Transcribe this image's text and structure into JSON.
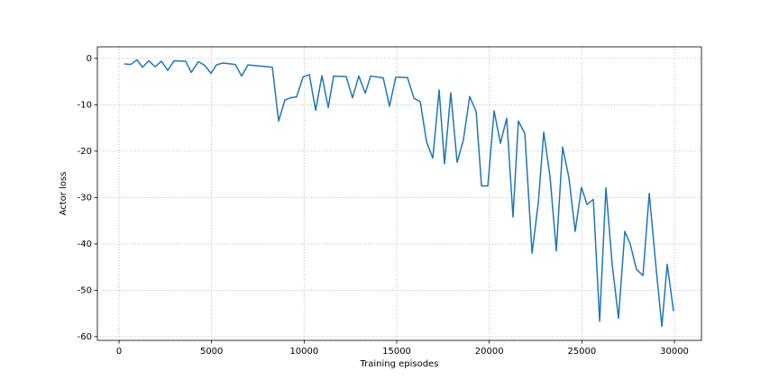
{
  "chart_data": {
    "type": "line",
    "x_label": "Training episodes",
    "y_label": "Actor loss",
    "xlim": [
      -1170,
      31460
    ],
    "ylim": [
      -60.8,
      2.5
    ],
    "xticks": [
      0,
      5000,
      10000,
      15000,
      20000,
      25000,
      30000
    ],
    "yticks": [
      -60,
      -50,
      -40,
      -30,
      -20,
      -10,
      0
    ],
    "grid": true,
    "x": [
      290,
      630,
      970,
      1270,
      1610,
      1950,
      2290,
      2630,
      2970,
      3600,
      3900,
      4290,
      4630,
      4970,
      5260,
      5600,
      6280,
      6620,
      6960,
      8280,
      8620,
      8960,
      9250,
      9590,
      9940,
      10280,
      10620,
      10960,
      11300,
      11590,
      12270,
      12610,
      12950,
      13300,
      13590,
      14270,
      14610,
      14950,
      15290,
      15580,
      15930,
      16270,
      16610,
      16950,
      17290,
      17580,
      17920,
      18260,
      18600,
      18940,
      19290,
      19580,
      19920,
      20260,
      20600,
      20940,
      21280,
      21570,
      21920,
      22310,
      22650,
      22940,
      23280,
      23620,
      23960,
      24300,
      24640,
      24980,
      25280,
      25620,
      25960,
      26300,
      26640,
      26980,
      27320,
      27610,
      27950,
      28300,
      28640,
      28980,
      29320,
      29610,
      29950
    ],
    "series": [
      {
        "name": "Actor loss",
        "color": "#1f77b4",
        "values": [
          -1.2,
          -1.3,
          -0.3,
          -1.9,
          -0.5,
          -1.8,
          -0.6,
          -2.6,
          -0.5,
          -0.6,
          -3.0,
          -0.7,
          -1.5,
          -3.2,
          -1.4,
          -1.0,
          -1.3,
          -3.8,
          -1.4,
          -1.9,
          -13.5,
          -9.0,
          -8.5,
          -8.3,
          -4.0,
          -3.5,
          -11.2,
          -3.7,
          -10.6,
          -3.8,
          -3.9,
          -8.5,
          -3.8,
          -7.5,
          -3.8,
          -4.2,
          -10.3,
          -4.0,
          -4.1,
          -4.1,
          -8.6,
          -9.3,
          -18.0,
          -21.5,
          -6.8,
          -22.7,
          -7.4,
          -22.4,
          -17.6,
          -8.2,
          -11.5,
          -27.5,
          -27.5,
          -11.3,
          -18.3,
          -12.9,
          -34.2,
          -13.5,
          -16.2,
          -42.0,
          -31.0,
          -15.9,
          -25.5,
          -41.5,
          -19.1,
          -25.7,
          -37.3,
          -27.8,
          -31.5,
          -30.4,
          -56.7,
          -27.9,
          -44.5,
          -56.0,
          -37.3,
          -40.0,
          -45.5,
          -46.8,
          -29.1,
          -44.0,
          -57.8,
          -44.4,
          -54.5
        ]
      }
    ]
  }
}
